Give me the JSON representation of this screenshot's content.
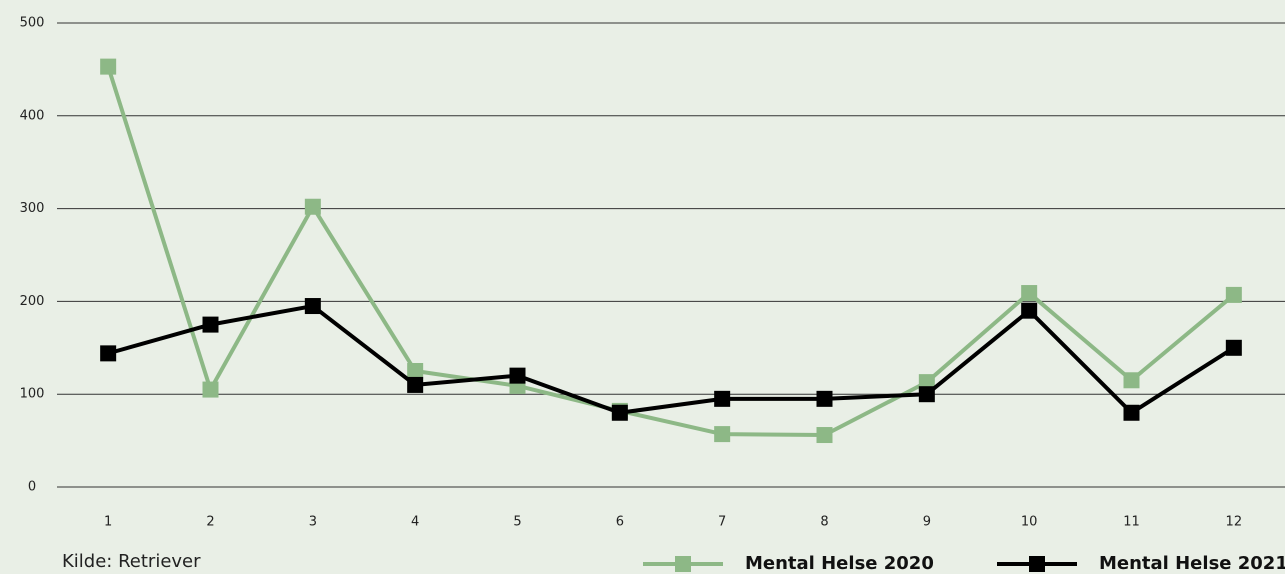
{
  "chart_data": {
    "type": "line",
    "categories": [
      "1",
      "2",
      "3",
      "4",
      "5",
      "6",
      "7",
      "8",
      "9",
      "10",
      "11",
      "12"
    ],
    "series": [
      {
        "name": "Mental Helse 2020",
        "color": "#8db886",
        "values": [
          453,
          105,
          302,
          125,
          109,
          82,
          57,
          56,
          113,
          209,
          115,
          207
        ]
      },
      {
        "name": "Mental Helse 2021",
        "color": "#000000",
        "values": [
          144,
          175,
          195,
          110,
          120,
          80,
          95,
          95,
          100,
          190,
          80,
          150
        ]
      }
    ],
    "ylim": [
      0,
      500
    ],
    "yticks": [
      0,
      100,
      200,
      300,
      400,
      500
    ],
    "grid": true,
    "note": "Kilde: Retriever"
  }
}
